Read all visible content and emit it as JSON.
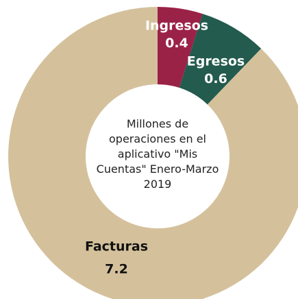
{
  "chart_data": {
    "type": "donut",
    "title": "Millones de operaciones en el aplicativo \"Mis Cuentas\" Enero-Marzo 2019",
    "categories": [
      "Ingresos",
      "Egresos",
      "Facturas"
    ],
    "values": [
      0.4,
      0.6,
      7.2
    ],
    "colors": [
      "#9b2247",
      "#235b4e",
      "#d4c19c"
    ]
  }
}
